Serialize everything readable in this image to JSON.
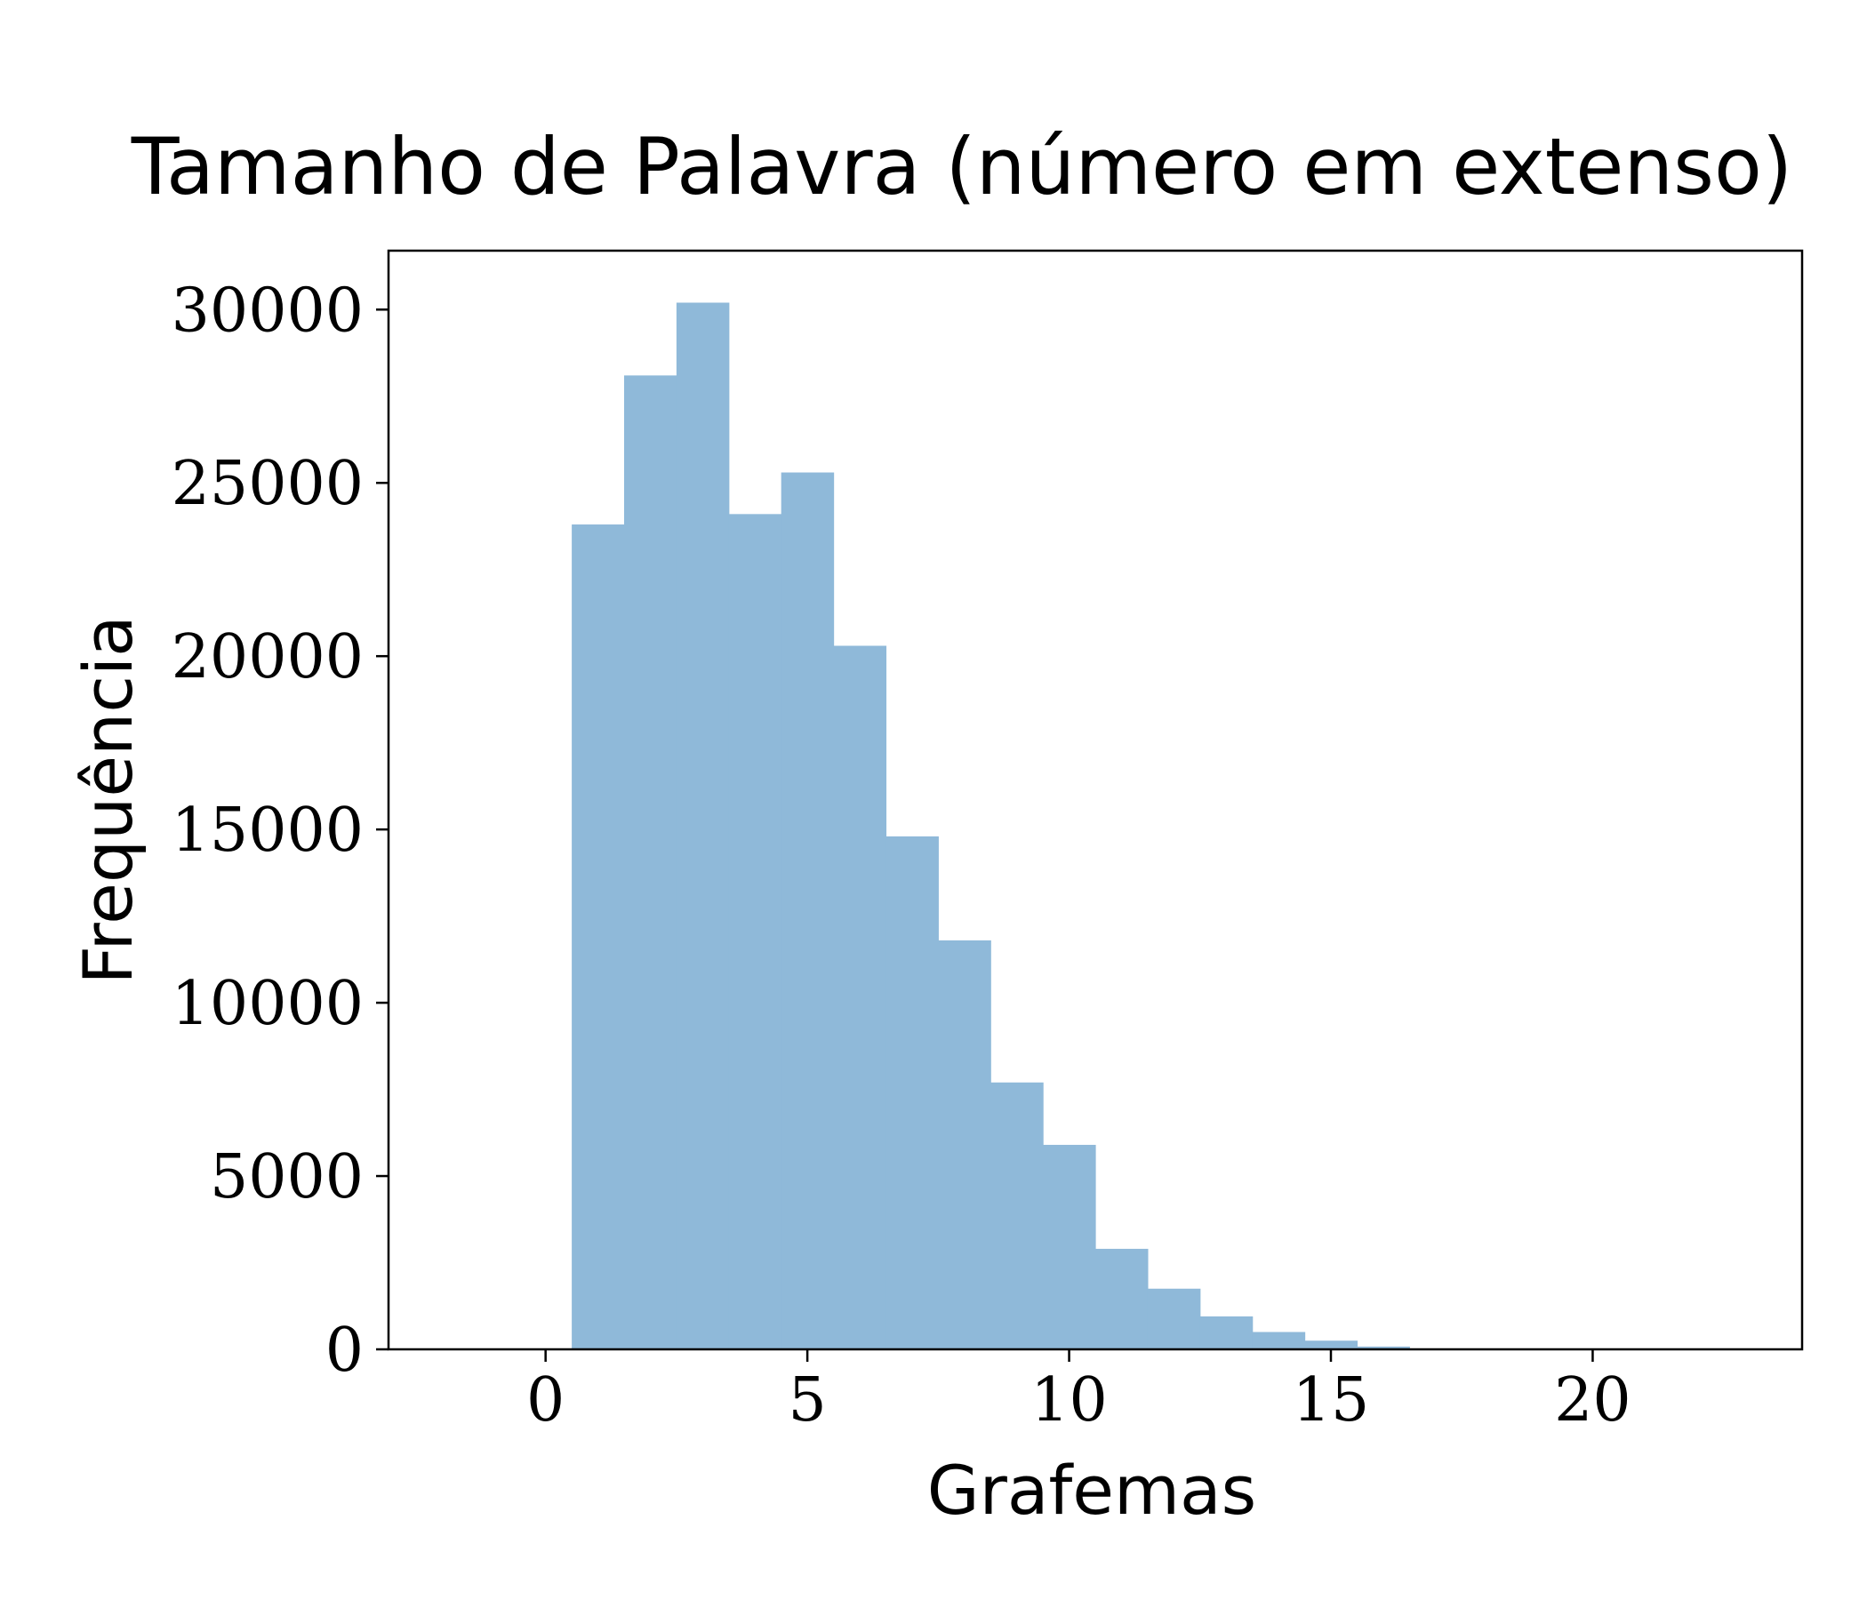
{
  "chart_data": {
    "type": "bar",
    "title": "Tamanho de Palavra (número em extenso)",
    "xlabel": "Grafemas",
    "ylabel": "Frequência",
    "xlim": [
      -3,
      24
    ],
    "ylim": [
      0,
      31700
    ],
    "xticks": [
      0,
      5,
      10,
      15,
      20
    ],
    "yticks": [
      0,
      5000,
      10000,
      15000,
      20000,
      25000,
      30000
    ],
    "bar_color": "#8fb9d9",
    "bin_width": 1,
    "bins": [
      {
        "x": 1,
        "value": 23800
      },
      {
        "x": 2,
        "value": 28100
      },
      {
        "x": 3,
        "value": 30200
      },
      {
        "x": 4,
        "value": 24100
      },
      {
        "x": 5,
        "value": 25300
      },
      {
        "x": 6,
        "value": 20300
      },
      {
        "x": 7,
        "value": 14800
      },
      {
        "x": 8,
        "value": 11800
      },
      {
        "x": 9,
        "value": 7700
      },
      {
        "x": 10,
        "value": 5900
      },
      {
        "x": 11,
        "value": 2900
      },
      {
        "x": 12,
        "value": 1750
      },
      {
        "x": 13,
        "value": 950
      },
      {
        "x": 14,
        "value": 500
      },
      {
        "x": 15,
        "value": 250
      },
      {
        "x": 16,
        "value": 80
      },
      {
        "x": 17,
        "value": 20
      },
      {
        "x": 18,
        "value": 5
      }
    ]
  }
}
